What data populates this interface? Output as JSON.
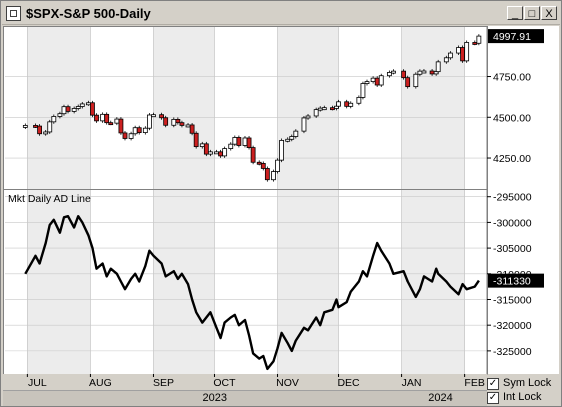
{
  "window": {
    "title": "$SPX-S&P 500-Daily",
    "buttons": [
      "_",
      "□",
      "X"
    ]
  },
  "chart_data": [
    {
      "type": "candlestick",
      "title": "$SPX-S&P 500-Daily",
      "last_value_label": "4997.91",
      "y_ticks": [
        "4750.00",
        "4500.00",
        "4250.00"
      ],
      "y_tick_values": [
        4750,
        4500,
        4250
      ],
      "ylim": [
        4060,
        5060
      ],
      "series": [
        {
          "date": "2023-06-30",
          "close": 4450
        },
        {
          "date": "2023-07-05",
          "close": 4446
        },
        {
          "date": "2023-07-07",
          "close": 4399
        },
        {
          "date": "2023-07-10",
          "close": 4410
        },
        {
          "date": "2023-07-12",
          "close": 4472
        },
        {
          "date": "2023-07-14",
          "close": 4505
        },
        {
          "date": "2023-07-17",
          "close": 4522
        },
        {
          "date": "2023-07-19",
          "close": 4565
        },
        {
          "date": "2023-07-21",
          "close": 4536
        },
        {
          "date": "2023-07-24",
          "close": 4554
        },
        {
          "date": "2023-07-26",
          "close": 4566
        },
        {
          "date": "2023-07-28",
          "close": 4582
        },
        {
          "date": "2023-07-31",
          "close": 4589
        },
        {
          "date": "2023-08-02",
          "close": 4513
        },
        {
          "date": "2023-08-04",
          "close": 4478
        },
        {
          "date": "2023-08-07",
          "close": 4518
        },
        {
          "date": "2023-08-09",
          "close": 4467
        },
        {
          "date": "2023-08-11",
          "close": 4464
        },
        {
          "date": "2023-08-14",
          "close": 4489
        },
        {
          "date": "2023-08-16",
          "close": 4404
        },
        {
          "date": "2023-08-18",
          "close": 4370
        },
        {
          "date": "2023-08-21",
          "close": 4399
        },
        {
          "date": "2023-08-23",
          "close": 4436
        },
        {
          "date": "2023-08-25",
          "close": 4406
        },
        {
          "date": "2023-08-28",
          "close": 4433
        },
        {
          "date": "2023-08-30",
          "close": 4514
        },
        {
          "date": "2023-09-01",
          "close": 4516
        },
        {
          "date": "2023-09-05",
          "close": 4497
        },
        {
          "date": "2023-09-07",
          "close": 4451
        },
        {
          "date": "2023-09-11",
          "close": 4487
        },
        {
          "date": "2023-09-13",
          "close": 4467
        },
        {
          "date": "2023-09-15",
          "close": 4450
        },
        {
          "date": "2023-09-18",
          "close": 4453
        },
        {
          "date": "2023-09-20",
          "close": 4402
        },
        {
          "date": "2023-09-22",
          "close": 4320
        },
        {
          "date": "2023-09-25",
          "close": 4337
        },
        {
          "date": "2023-09-27",
          "close": 4274
        },
        {
          "date": "2023-09-29",
          "close": 4288
        },
        {
          "date": "2023-10-02",
          "close": 4288
        },
        {
          "date": "2023-10-04",
          "close": 4263
        },
        {
          "date": "2023-10-06",
          "close": 4308
        },
        {
          "date": "2023-10-09",
          "close": 4335
        },
        {
          "date": "2023-10-11",
          "close": 4376
        },
        {
          "date": "2023-10-13",
          "close": 4327
        },
        {
          "date": "2023-10-16",
          "close": 4373
        },
        {
          "date": "2023-10-18",
          "close": 4314
        },
        {
          "date": "2023-10-20",
          "close": 4224
        },
        {
          "date": "2023-10-23",
          "close": 4217
        },
        {
          "date": "2023-10-25",
          "close": 4186
        },
        {
          "date": "2023-10-27",
          "close": 4117
        },
        {
          "date": "2023-10-30",
          "close": 4167
        },
        {
          "date": "2023-11-01",
          "close": 4237
        },
        {
          "date": "2023-11-03",
          "close": 4358
        },
        {
          "date": "2023-11-06",
          "close": 4365
        },
        {
          "date": "2023-11-08",
          "close": 4382
        },
        {
          "date": "2023-11-10",
          "close": 4415
        },
        {
          "date": "2023-11-14",
          "close": 4496
        },
        {
          "date": "2023-11-16",
          "close": 4508
        },
        {
          "date": "2023-11-20",
          "close": 4547
        },
        {
          "date": "2023-11-22",
          "close": 4556
        },
        {
          "date": "2023-11-24",
          "close": 4559
        },
        {
          "date": "2023-11-28",
          "close": 4554
        },
        {
          "date": "2023-11-30",
          "close": 4568
        },
        {
          "date": "2023-12-01",
          "close": 4595
        },
        {
          "date": "2023-12-05",
          "close": 4567
        },
        {
          "date": "2023-12-07",
          "close": 4586
        },
        {
          "date": "2023-12-11",
          "close": 4622
        },
        {
          "date": "2023-12-13",
          "close": 4707
        },
        {
          "date": "2023-12-15",
          "close": 4719
        },
        {
          "date": "2023-12-18",
          "close": 4740
        },
        {
          "date": "2023-12-20",
          "close": 4698
        },
        {
          "date": "2023-12-22",
          "close": 4755
        },
        {
          "date": "2023-12-26",
          "close": 4775
        },
        {
          "date": "2023-12-28",
          "close": 4783
        },
        {
          "date": "2024-01-02",
          "close": 4743
        },
        {
          "date": "2024-01-04",
          "close": 4688
        },
        {
          "date": "2024-01-08",
          "close": 4764
        },
        {
          "date": "2024-01-10",
          "close": 4783
        },
        {
          "date": "2024-01-12",
          "close": 4784
        },
        {
          "date": "2024-01-16",
          "close": 4766
        },
        {
          "date": "2024-01-18",
          "close": 4780
        },
        {
          "date": "2024-01-19",
          "close": 4840
        },
        {
          "date": "2024-01-23",
          "close": 4865
        },
        {
          "date": "2024-01-25",
          "close": 4894
        },
        {
          "date": "2024-01-29",
          "close": 4928
        },
        {
          "date": "2024-01-31",
          "close": 4846
        },
        {
          "date": "2024-02-02",
          "close": 4959
        },
        {
          "date": "2024-02-06",
          "close": 4954
        },
        {
          "date": "2024-02-08",
          "close": 4998
        }
      ]
    },
    {
      "type": "line",
      "title": "Mkt Daily AD Line",
      "last_value_label": "-311330",
      "y_ticks": [
        "-295000",
        "-300000",
        "-305000",
        "-310000",
        "-315000",
        "-320000",
        "-325000"
      ],
      "y_tick_values": [
        -295000,
        -300000,
        -305000,
        -310000,
        -315000,
        -320000,
        -325000
      ],
      "ylim": [
        -329500,
        -293500
      ],
      "series": [
        {
          "date": "2023-06-30",
          "value": -310000
        },
        {
          "date": "2023-07-05",
          "value": -306500
        },
        {
          "date": "2023-07-07",
          "value": -308000
        },
        {
          "date": "2023-07-10",
          "value": -304000
        },
        {
          "date": "2023-07-12",
          "value": -300500
        },
        {
          "date": "2023-07-14",
          "value": -299500
        },
        {
          "date": "2023-07-17",
          "value": -302000
        },
        {
          "date": "2023-07-19",
          "value": -299000
        },
        {
          "date": "2023-07-21",
          "value": -298800
        },
        {
          "date": "2023-07-24",
          "value": -301000
        },
        {
          "date": "2023-07-26",
          "value": -298800
        },
        {
          "date": "2023-07-28",
          "value": -300000
        },
        {
          "date": "2023-07-31",
          "value": -302500
        },
        {
          "date": "2023-08-02",
          "value": -305000
        },
        {
          "date": "2023-08-04",
          "value": -309000
        },
        {
          "date": "2023-08-07",
          "value": -308000
        },
        {
          "date": "2023-08-09",
          "value": -310500
        },
        {
          "date": "2023-08-11",
          "value": -309000
        },
        {
          "date": "2023-08-14",
          "value": -310000
        },
        {
          "date": "2023-08-16",
          "value": -311500
        },
        {
          "date": "2023-08-18",
          "value": -313000
        },
        {
          "date": "2023-08-21",
          "value": -311000
        },
        {
          "date": "2023-08-23",
          "value": -310000
        },
        {
          "date": "2023-08-25",
          "value": -311500
        },
        {
          "date": "2023-08-28",
          "value": -308500
        },
        {
          "date": "2023-08-30",
          "value": -305500
        },
        {
          "date": "2023-09-01",
          "value": -306500
        },
        {
          "date": "2023-09-05",
          "value": -308000
        },
        {
          "date": "2023-09-07",
          "value": -310500
        },
        {
          "date": "2023-09-11",
          "value": -309500
        },
        {
          "date": "2023-09-13",
          "value": -311000
        },
        {
          "date": "2023-09-15",
          "value": -310000
        },
        {
          "date": "2023-09-18",
          "value": -312000
        },
        {
          "date": "2023-09-20",
          "value": -315000
        },
        {
          "date": "2023-09-22",
          "value": -317500
        },
        {
          "date": "2023-09-25",
          "value": -319500
        },
        {
          "date": "2023-09-27",
          "value": -318500
        },
        {
          "date": "2023-09-29",
          "value": -317500
        },
        {
          "date": "2023-10-02",
          "value": -320500
        },
        {
          "date": "2023-10-04",
          "value": -322500
        },
        {
          "date": "2023-10-06",
          "value": -319500
        },
        {
          "date": "2023-10-09",
          "value": -318500
        },
        {
          "date": "2023-10-11",
          "value": -318000
        },
        {
          "date": "2023-10-13",
          "value": -320000
        },
        {
          "date": "2023-10-16",
          "value": -319000
        },
        {
          "date": "2023-10-18",
          "value": -322000
        },
        {
          "date": "2023-10-20",
          "value": -325500
        },
        {
          "date": "2023-10-23",
          "value": -326500
        },
        {
          "date": "2023-10-25",
          "value": -326000
        },
        {
          "date": "2023-10-27",
          "value": -328500
        },
        {
          "date": "2023-10-30",
          "value": -327000
        },
        {
          "date": "2023-11-01",
          "value": -324500
        },
        {
          "date": "2023-11-03",
          "value": -321500
        },
        {
          "date": "2023-11-06",
          "value": -323500
        },
        {
          "date": "2023-11-08",
          "value": -325000
        },
        {
          "date": "2023-11-10",
          "value": -323000
        },
        {
          "date": "2023-11-14",
          "value": -320500
        },
        {
          "date": "2023-11-16",
          "value": -321000
        },
        {
          "date": "2023-11-20",
          "value": -318500
        },
        {
          "date": "2023-11-22",
          "value": -320000
        },
        {
          "date": "2023-11-24",
          "value": -317500
        },
        {
          "date": "2023-11-28",
          "value": -317000
        },
        {
          "date": "2023-11-30",
          "value": -315000
        },
        {
          "date": "2023-12-01",
          "value": -316500
        },
        {
          "date": "2023-12-05",
          "value": -315500
        },
        {
          "date": "2023-12-07",
          "value": -313500
        },
        {
          "date": "2023-12-11",
          "value": -311500
        },
        {
          "date": "2023-12-13",
          "value": -309500
        },
        {
          "date": "2023-12-15",
          "value": -310500
        },
        {
          "date": "2023-12-18",
          "value": -306500
        },
        {
          "date": "2023-12-20",
          "value": -304000
        },
        {
          "date": "2023-12-22",
          "value": -305500
        },
        {
          "date": "2023-12-26",
          "value": -308000
        },
        {
          "date": "2023-12-28",
          "value": -310000
        },
        {
          "date": "2024-01-02",
          "value": -309500
        },
        {
          "date": "2024-01-04",
          "value": -311500
        },
        {
          "date": "2024-01-08",
          "value": -314500
        },
        {
          "date": "2024-01-10",
          "value": -313000
        },
        {
          "date": "2024-01-12",
          "value": -310500
        },
        {
          "date": "2024-01-16",
          "value": -311500
        },
        {
          "date": "2024-01-18",
          "value": -309000
        },
        {
          "date": "2024-01-19",
          "value": -310000
        },
        {
          "date": "2024-01-23",
          "value": -311500
        },
        {
          "date": "2024-01-25",
          "value": -312500
        },
        {
          "date": "2024-01-29",
          "value": -314000
        },
        {
          "date": "2024-01-31",
          "value": -312000
        },
        {
          "date": "2024-02-02",
          "value": -313000
        },
        {
          "date": "2024-02-06",
          "value": -312500
        },
        {
          "date": "2024-02-08",
          "value": -311330
        }
      ]
    }
  ],
  "x_axis": {
    "months": [
      {
        "label": "JUL",
        "date": "2023-07-01"
      },
      {
        "label": "AUG",
        "date": "2023-08-01"
      },
      {
        "label": "SEP",
        "date": "2023-09-01"
      },
      {
        "label": "OCT",
        "date": "2023-10-01"
      },
      {
        "label": "NOV",
        "date": "2023-11-01"
      },
      {
        "label": "DEC",
        "date": "2023-12-01"
      },
      {
        "label": "JAN",
        "date": "2024-01-01"
      },
      {
        "label": "FEB",
        "date": "2024-02-01"
      }
    ],
    "years": [
      {
        "label": "2023",
        "date": "2023-10-01"
      },
      {
        "label": "2024",
        "date": "2024-01-20"
      }
    ],
    "range": [
      "2023-06-20",
      "2024-02-12"
    ]
  },
  "locks": {
    "sym_lock": {
      "label": "Sym Lock",
      "checked": "✓"
    },
    "int_lock": {
      "label": "Int Lock",
      "checked": "✓"
    }
  },
  "colors": {
    "up": "#ffffff",
    "down": "#cc2020",
    "line": "#000000",
    "shade_light": "#ececec",
    "shade_dark": "#e0e0e0"
  }
}
